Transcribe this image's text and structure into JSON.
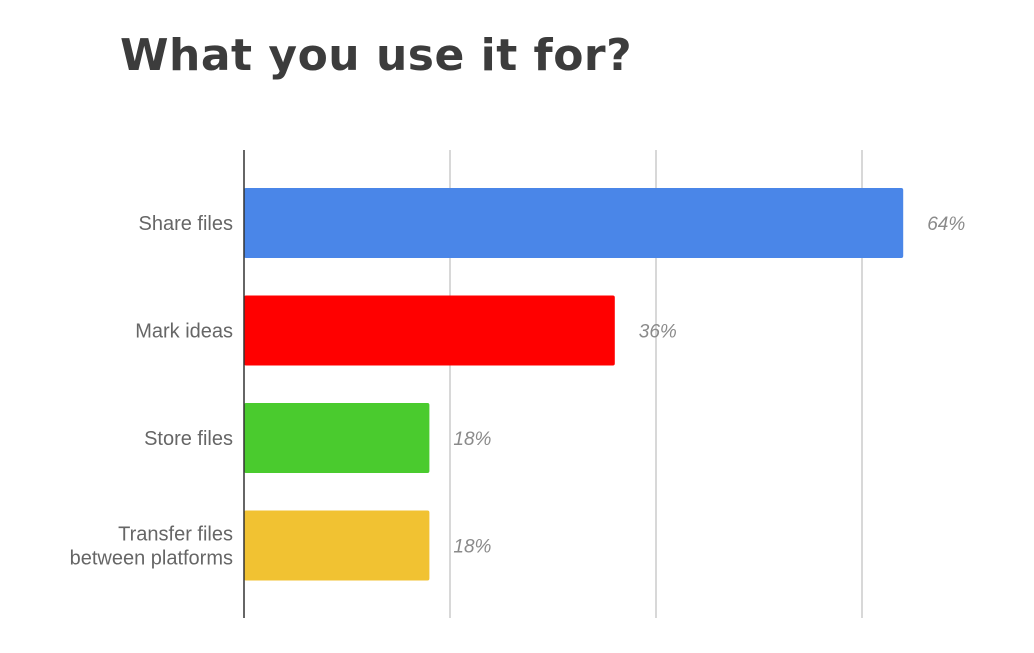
{
  "chart_data": {
    "type": "bar",
    "orientation": "horizontal",
    "title": "What you use it for?",
    "categories": [
      [
        "Share files"
      ],
      [
        "Mark ideas"
      ],
      [
        "Store files"
      ],
      [
        "Transfer files",
        "between platforms"
      ]
    ],
    "values": [
      64,
      36,
      18,
      18
    ],
    "value_labels": [
      "64%",
      "36%",
      "18%",
      "18%"
    ],
    "colors": [
      "#4a86e8",
      "#ff0000",
      "#4acb2e",
      "#f1c232"
    ],
    "xlim": [
      0,
      60
    ],
    "gridlines": [
      20,
      40,
      60
    ],
    "xlabel": "",
    "ylabel": "",
    "legend": "none"
  }
}
